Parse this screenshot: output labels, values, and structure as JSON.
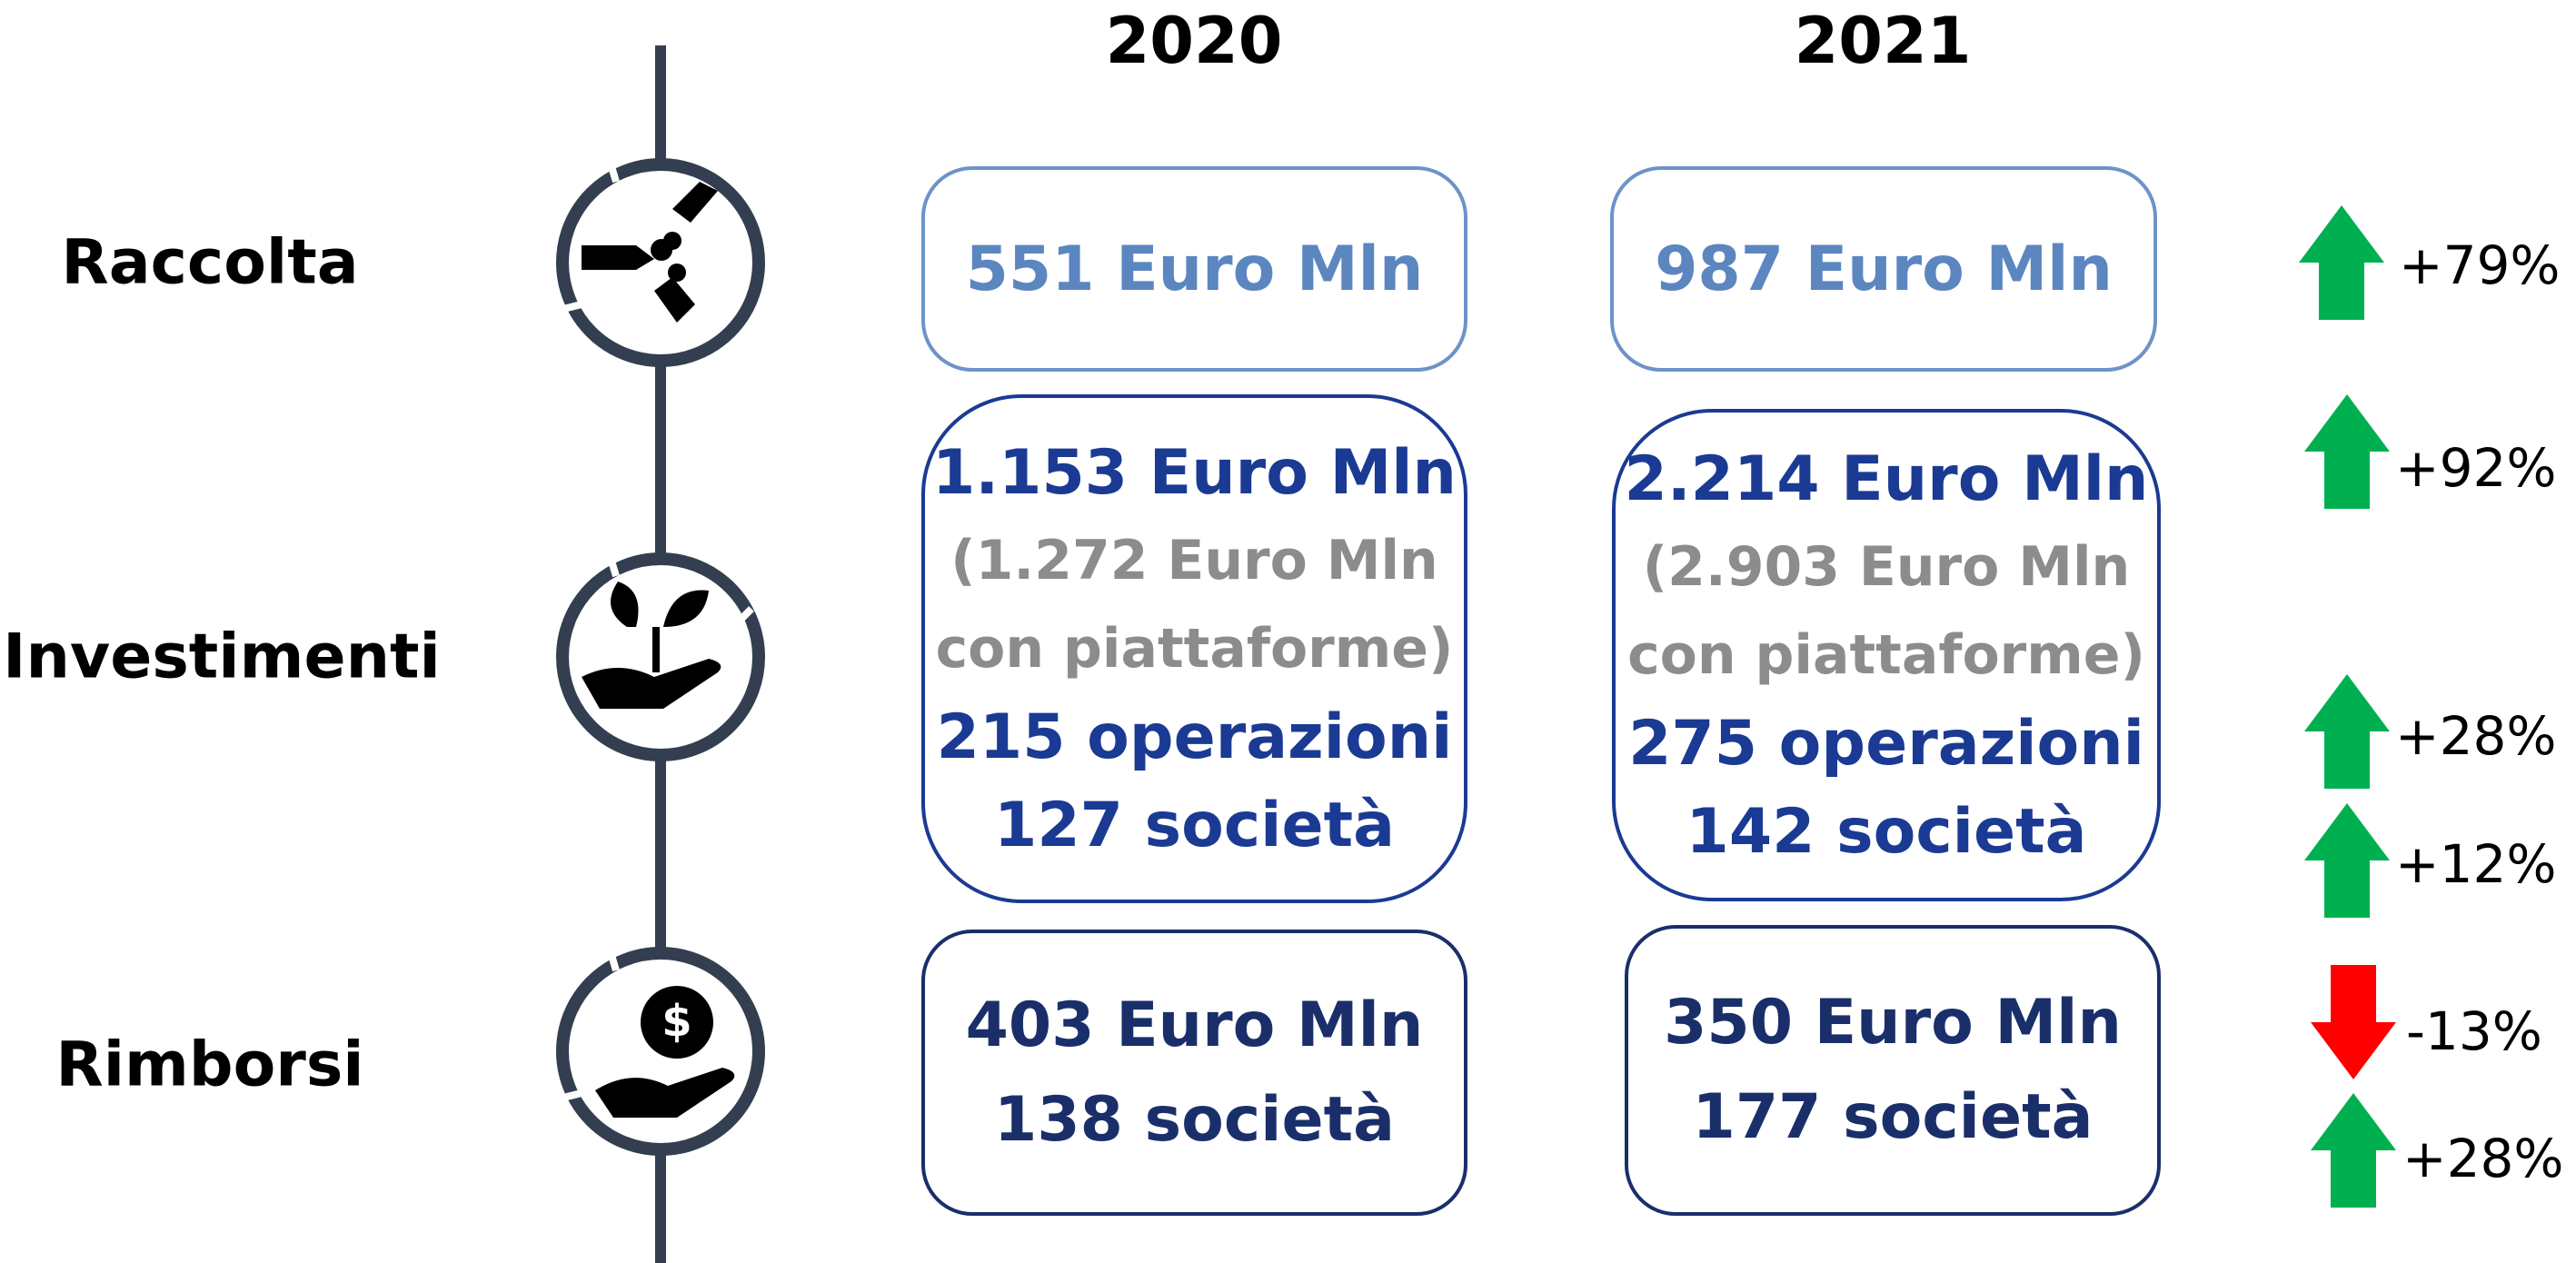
{
  "years": [
    "2020",
    "2021"
  ],
  "rows": [
    {
      "label": "Raccolta",
      "cells": [
        {
          "amount": "551 Euro Mln"
        },
        {
          "amount": "987 Euro Mln"
        }
      ],
      "changes": [
        "+79%"
      ]
    },
    {
      "label": "Investimenti",
      "cells": [
        {
          "amount": "1.153 Euro Mln",
          "platform": [
            "(1.272 Euro Mln",
            "con piattaforme)"
          ],
          "operations": "215 operazioni",
          "companies": "127 società"
        },
        {
          "amount": "2.214 Euro Mln",
          "platform": [
            "(2.903 Euro Mln",
            "con piattaforme)"
          ],
          "operations": "275 operazioni",
          "companies": "142 società"
        }
      ],
      "changes": [
        "+92%",
        "+28%",
        "+12%"
      ]
    },
    {
      "label": "Rimborsi",
      "cells": [
        {
          "amount": "403 Euro Mln",
          "companies": "138 società"
        },
        {
          "amount": "350 Euro Mln",
          "companies": "177 società"
        }
      ],
      "changes": [
        "-13%",
        "+28%"
      ]
    }
  ]
}
